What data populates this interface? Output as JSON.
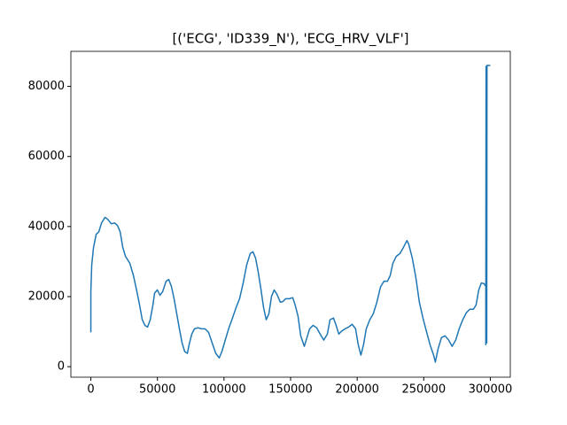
{
  "chart_data": {
    "type": "line",
    "title": "[('ECG', 'ID339_N'), 'ECG_HRV_VLF']",
    "color": "#1f77b4",
    "x": [
      0,
      0,
      665,
      2000,
      4000,
      6000,
      8000,
      10600,
      12600,
      15300,
      18000,
      20000,
      22000,
      24000,
      26000,
      29300,
      32000,
      34600,
      36600,
      38600,
      40600,
      42600,
      44600,
      46600,
      47900,
      49900,
      51900,
      53900,
      56500,
      58500,
      60500,
      62500,
      64500,
      66500,
      68500,
      70500,
      72500,
      73800,
      75800,
      77800,
      80500,
      83100,
      85800,
      88400,
      91100,
      93800,
      96400,
      98400,
      101100,
      103700,
      106400,
      109100,
      111700,
      114400,
      117000,
      119700,
      121700,
      123700,
      125700,
      127700,
      129700,
      131700,
      133700,
      135700,
      137700,
      139700,
      142300,
      144300,
      146300,
      149000,
      151600,
      153600,
      155600,
      157600,
      160300,
      162300,
      164300,
      166900,
      169600,
      172200,
      174900,
      177600,
      179600,
      182200,
      184200,
      186200,
      188200,
      190900,
      193500,
      196200,
      198800,
      200800,
      202800,
      204800,
      206800,
      209500,
      212100,
      214800,
      217500,
      220100,
      222800,
      224800,
      226800,
      229400,
      232100,
      234700,
      237400,
      238700,
      241400,
      244100,
      246700,
      249400,
      252000,
      254700,
      257400,
      258700,
      260700,
      263300,
      266000,
      268700,
      271300,
      274000,
      276600,
      279300,
      282000,
      284600,
      287300,
      289300,
      291300,
      293300,
      295300,
      296600,
      296600,
      296800,
      297300,
      297500,
      300000
    ],
    "values": [
      9800,
      21400,
      29000,
      34000,
      37800,
      38500,
      41000,
      42600,
      42100,
      40800,
      41000,
      40300,
      38500,
      34000,
      31500,
      29500,
      26000,
      21400,
      17600,
      13400,
      11800,
      11300,
      13400,
      17600,
      21000,
      21900,
      20400,
      21400,
      24400,
      24900,
      22900,
      19400,
      15100,
      10800,
      6800,
      4300,
      3800,
      6300,
      9300,
      10800,
      11100,
      10800,
      10800,
      9800,
      6800,
      3800,
      2500,
      4300,
      7800,
      11100,
      13900,
      16900,
      19400,
      23900,
      29000,
      32300,
      32800,
      31000,
      27000,
      22200,
      16900,
      13400,
      15100,
      20100,
      21900,
      20700,
      18400,
      18600,
      19400,
      19400,
      19700,
      17400,
      14400,
      8800,
      5800,
      8300,
      10800,
      11800,
      11100,
      9300,
      7600,
      9300,
      13400,
      13900,
      11800,
      9300,
      10100,
      10800,
      11300,
      12100,
      10800,
      6300,
      3300,
      6300,
      10800,
      13400,
      15100,
      18400,
      22700,
      24400,
      24400,
      26000,
      29500,
      31500,
      32300,
      34000,
      36000,
      35000,
      31000,
      25400,
      18400,
      13900,
      10100,
      6300,
      3300,
      1300,
      5000,
      8300,
      8800,
      7600,
      5800,
      7600,
      10800,
      13400,
      15400,
      16400,
      16400,
      17600,
      21900,
      23900,
      23700,
      22900,
      6300,
      85700,
      6800,
      86000,
      86000
    ],
    "xlim": [
      -15000,
      315000
    ],
    "xticks": [
      0,
      50000,
      100000,
      150000,
      200000,
      250000,
      300000
    ],
    "ylim": [
      -3000,
      90000
    ],
    "yticks": [
      0,
      20000,
      40000,
      60000,
      80000
    ]
  }
}
